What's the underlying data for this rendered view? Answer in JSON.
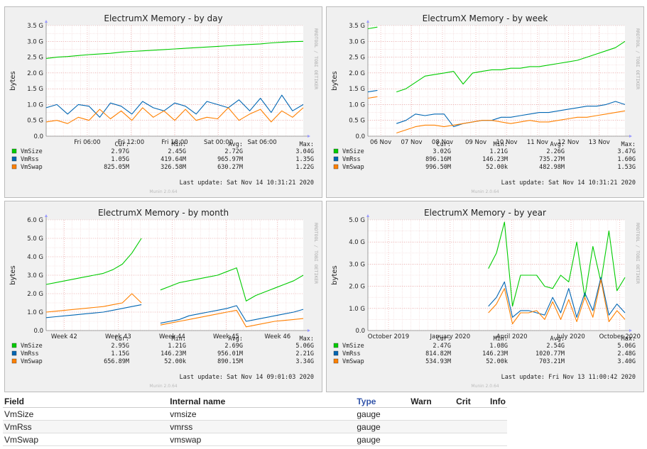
{
  "series_colors": {
    "VmSize": "#00cc00",
    "VmRss": "#0066b3",
    "VmSwap": "#ff8000"
  },
  "graph_meta": {
    "ylabel": "bytes",
    "watermark": "RRDTOOL / TOBI OETIKER",
    "munin_version": "Munin 2.0.64"
  },
  "legend_header": {
    "cur": "Cur:",
    "min": "Min:",
    "avg": "Avg:",
    "max": "Max:"
  },
  "chart_data": [
    {
      "type": "line",
      "title": "ElectrumX Memory - by day",
      "ylabel": "bytes",
      "ylim": [
        0,
        3.5
      ],
      "y_ticks": [
        "0.0",
        "0.5 G",
        "1.0 G",
        "1.5 G",
        "2.0 G",
        "2.5 G",
        "3.0 G",
        "3.5 G"
      ],
      "x_ticks": [
        "Fri 06:00",
        "Fri 12:00",
        "Fri 18:00",
        "Sat 00:00",
        "Sat 06:00"
      ],
      "x_tick_positions": [
        0.16,
        0.33,
        0.5,
        0.67,
        0.84
      ],
      "legend": [
        {
          "name": "VmSize",
          "cur": "2.97G",
          "min": "2.45G",
          "avg": "2.72G",
          "max": "3.04G"
        },
        {
          "name": "VmRss",
          "cur": "1.05G",
          "min": "419.64M",
          "avg": "965.97M",
          "max": "1.35G"
        },
        {
          "name": "VmSwap",
          "cur": "825.05M",
          "min": "326.58M",
          "avg": "630.27M",
          "max": "1.22G"
        }
      ],
      "last_update": "Last update: Sat Nov 14 10:31:21 2020",
      "series": [
        {
          "name": "VmSize",
          "values": [
            2.46,
            2.5,
            2.52,
            2.55,
            2.58,
            2.6,
            2.62,
            2.66,
            2.68,
            2.7,
            2.72,
            2.74,
            2.76,
            2.78,
            2.8,
            2.82,
            2.84,
            2.86,
            2.88,
            2.9,
            2.92,
            2.95,
            2.97,
            2.99,
            3.0
          ]
        },
        {
          "name": "VmRss",
          "values": [
            0.9,
            1.0,
            0.7,
            1.0,
            0.95,
            0.6,
            1.05,
            0.95,
            0.7,
            1.1,
            0.9,
            0.8,
            1.05,
            0.95,
            0.7,
            1.1,
            1.0,
            0.9,
            1.15,
            0.8,
            1.2,
            0.75,
            1.3,
            0.8,
            1.0
          ]
        },
        {
          "name": "VmSwap",
          "values": [
            0.45,
            0.5,
            0.4,
            0.6,
            0.5,
            0.85,
            0.55,
            0.8,
            0.5,
            0.9,
            0.6,
            0.8,
            0.5,
            0.85,
            0.5,
            0.6,
            0.55,
            0.9,
            0.5,
            0.7,
            0.85,
            0.45,
            0.8,
            0.6,
            0.9
          ]
        }
      ]
    },
    {
      "type": "line",
      "title": "ElectrumX Memory - by week",
      "ylabel": "bytes",
      "ylim": [
        0,
        3.5
      ],
      "y_ticks": [
        "0.0",
        "0.5 G",
        "1.0 G",
        "1.5 G",
        "2.0 G",
        "2.5 G",
        "3.0 G",
        "3.5 G"
      ],
      "x_ticks": [
        "06 Nov",
        "07 Nov",
        "08 Nov",
        "09 Nov",
        "10 Nov",
        "11 Nov",
        "12 Nov",
        "13 Nov"
      ],
      "x_tick_positions": [
        0.05,
        0.17,
        0.29,
        0.42,
        0.54,
        0.66,
        0.78,
        0.9
      ],
      "legend": [
        {
          "name": "VmSize",
          "cur": "3.02G",
          "min": "1.21G",
          "avg": "2.26G",
          "max": "3.47G"
        },
        {
          "name": "VmRss",
          "cur": "896.16M",
          "min": "146.23M",
          "avg": "735.27M",
          "max": "1.60G"
        },
        {
          "name": "VmSwap",
          "cur": "996.50M",
          "min": "52.00k",
          "avg": "482.98M",
          "max": "1.53G"
        }
      ],
      "last_update": "Last update: Sat Nov 14 10:31:21 2020",
      "series": [
        {
          "name": "VmSize",
          "values": [
            3.4,
            3.45,
            null,
            1.4,
            1.5,
            1.7,
            1.9,
            1.95,
            2.0,
            2.05,
            1.65,
            2.0,
            2.05,
            2.1,
            2.1,
            2.15,
            2.15,
            2.2,
            2.2,
            2.25,
            2.3,
            2.35,
            2.4,
            2.5,
            2.6,
            2.7,
            2.8,
            3.0
          ]
        },
        {
          "name": "VmRss",
          "values": [
            1.4,
            1.45,
            null,
            0.4,
            0.5,
            0.7,
            0.65,
            0.7,
            0.7,
            0.3,
            0.4,
            0.45,
            0.5,
            0.5,
            0.6,
            0.6,
            0.65,
            0.7,
            0.75,
            0.75,
            0.8,
            0.85,
            0.9,
            0.95,
            0.95,
            1.0,
            1.1,
            1.0
          ]
        },
        {
          "name": "VmSwap",
          "values": [
            1.2,
            1.25,
            null,
            0.1,
            0.2,
            0.3,
            0.35,
            0.35,
            0.3,
            0.35,
            0.4,
            0.45,
            0.5,
            0.5,
            0.45,
            0.4,
            0.45,
            0.5,
            0.45,
            0.45,
            0.5,
            0.55,
            0.6,
            0.6,
            0.65,
            0.7,
            0.75,
            0.8
          ]
        }
      ]
    },
    {
      "type": "line",
      "title": "ElectrumX Memory - by month",
      "ylabel": "bytes",
      "ylim": [
        0,
        6
      ],
      "y_ticks": [
        "0.0",
        "1.0 G",
        "2.0 G",
        "3.0 G",
        "4.0 G",
        "5.0 G",
        "6.0 G"
      ],
      "x_ticks": [
        "Week 42",
        "Week 43",
        "Week 44",
        "Week 45",
        "Week 46"
      ],
      "x_tick_positions": [
        0.07,
        0.28,
        0.49,
        0.7,
        0.9
      ],
      "legend": [
        {
          "name": "VmSize",
          "cur": "2.95G",
          "min": "1.21G",
          "avg": "2.69G",
          "max": "5.06G"
        },
        {
          "name": "VmRss",
          "cur": "1.15G",
          "min": "146.23M",
          "avg": "956.01M",
          "max": "2.21G"
        },
        {
          "name": "VmSwap",
          "cur": "656.89M",
          "min": "52.00k",
          "avg": "890.15M",
          "max": "3.34G"
        }
      ],
      "last_update": "Last update: Sat Nov 14 09:01:03 2020",
      "series": [
        {
          "name": "VmSize",
          "values": [
            2.5,
            2.6,
            2.7,
            2.8,
            2.9,
            3.0,
            3.1,
            3.3,
            3.6,
            4.2,
            5.0,
            null,
            2.2,
            2.4,
            2.6,
            2.7,
            2.8,
            2.9,
            3.0,
            3.2,
            3.4,
            1.6,
            1.9,
            2.1,
            2.3,
            2.5,
            2.7,
            3.0
          ]
        },
        {
          "name": "VmRss",
          "values": [
            0.7,
            0.75,
            0.8,
            0.85,
            0.9,
            0.95,
            1.0,
            1.1,
            1.2,
            1.3,
            1.4,
            null,
            0.4,
            0.5,
            0.6,
            0.8,
            0.9,
            1.0,
            1.1,
            1.2,
            1.35,
            0.5,
            0.6,
            0.7,
            0.8,
            0.9,
            1.0,
            1.15
          ]
        },
        {
          "name": "VmSwap",
          "values": [
            1.0,
            1.05,
            1.1,
            1.15,
            1.2,
            1.25,
            1.3,
            1.4,
            1.5,
            2.0,
            1.5,
            null,
            0.3,
            0.4,
            0.5,
            0.6,
            0.7,
            0.8,
            0.9,
            1.0,
            1.1,
            0.2,
            0.3,
            0.4,
            0.5,
            0.55,
            0.6,
            0.65
          ]
        }
      ]
    },
    {
      "type": "line",
      "title": "ElectrumX Memory - by year",
      "ylabel": "bytes",
      "ylim": [
        0,
        5
      ],
      "y_ticks": [
        "0.0",
        "1.0 G",
        "2.0 G",
        "3.0 G",
        "4.0 G",
        "5.0 G"
      ],
      "x_ticks": [
        "October 2019",
        "January 2020",
        "April 2020",
        "July 2020",
        "October 2020"
      ],
      "x_tick_positions": [
        0.08,
        0.32,
        0.56,
        0.79,
        0.98
      ],
      "legend": [
        {
          "name": "VmSize",
          "cur": "2.47G",
          "min": "1.08G",
          "avg": "2.54G",
          "max": "5.06G"
        },
        {
          "name": "VmRss",
          "cur": "814.82M",
          "min": "146.23M",
          "avg": "1020.77M",
          "max": "2.48G"
        },
        {
          "name": "VmSwap",
          "cur": "534.93M",
          "min": "52.00k",
          "avg": "703.21M",
          "max": "3.40G"
        }
      ],
      "last_update": "Last update: Fri Nov 13 11:00:42 2020",
      "series": [
        {
          "name": "VmSize",
          "values": [
            null,
            null,
            null,
            null,
            null,
            null,
            null,
            null,
            null,
            null,
            null,
            null,
            null,
            null,
            null,
            2.8,
            3.5,
            4.9,
            1.1,
            2.5,
            2.5,
            2.5,
            2.0,
            1.9,
            2.5,
            2.2,
            4.0,
            1.5,
            3.8,
            2.2,
            4.5,
            1.8,
            2.4
          ]
        },
        {
          "name": "VmRss",
          "values": [
            null,
            null,
            null,
            null,
            null,
            null,
            null,
            null,
            null,
            null,
            null,
            null,
            null,
            null,
            null,
            1.1,
            1.5,
            2.2,
            0.6,
            0.9,
            0.9,
            0.8,
            0.7,
            1.5,
            0.8,
            1.9,
            0.6,
            1.7,
            0.9,
            2.4,
            0.7,
            1.2,
            0.8
          ]
        },
        {
          "name": "VmSwap",
          "values": [
            null,
            null,
            null,
            null,
            null,
            null,
            null,
            null,
            null,
            null,
            null,
            null,
            null,
            null,
            null,
            0.8,
            1.2,
            1.9,
            0.3,
            0.8,
            0.8,
            0.9,
            0.5,
            1.3,
            0.5,
            1.4,
            0.4,
            1.5,
            0.6,
            2.3,
            0.4,
            0.9,
            0.5
          ]
        }
      ]
    }
  ],
  "fields_table": {
    "headers": {
      "field": "Field",
      "internal": "Internal name",
      "type": "Type",
      "warn": "Warn",
      "crit": "Crit",
      "info": "Info"
    },
    "rows": [
      {
        "field": "VmSize",
        "internal": "vmsize",
        "type": "gauge",
        "warn": "",
        "crit": "",
        "info": ""
      },
      {
        "field": "VmRss",
        "internal": "vmrss",
        "type": "gauge",
        "warn": "",
        "crit": "",
        "info": ""
      },
      {
        "field": "VmSwap",
        "internal": "vmswap",
        "type": "gauge",
        "warn": "",
        "crit": "",
        "info": ""
      }
    ]
  }
}
